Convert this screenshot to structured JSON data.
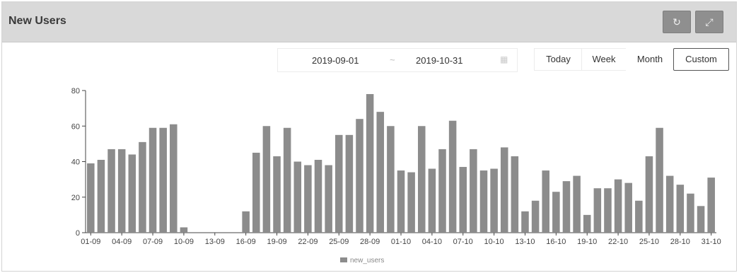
{
  "header": {
    "title": "New Users",
    "refresh_icon": "refresh-icon",
    "expand_icon": "expand-icon"
  },
  "toolbar": {
    "date_from": "2019-09-01",
    "date_separator": "~",
    "date_to": "2019-10-31",
    "calendar_icon": "calendar-icon",
    "today_label": "Today",
    "week_label": "Week",
    "month_label": "Month",
    "custom_label": "Custom",
    "active_range": "Custom"
  },
  "chart_data": {
    "type": "bar",
    "ylim": [
      0,
      80
    ],
    "yticks": [
      0,
      20,
      40,
      60,
      80
    ],
    "xtick_labels": [
      "01-09",
      "04-09",
      "07-09",
      "10-09",
      "13-09",
      "16-09",
      "19-09",
      "22-09",
      "25-09",
      "28-09",
      "01-10",
      "04-10",
      "07-10",
      "10-10",
      "13-10",
      "16-10",
      "19-10",
      "22-10",
      "25-10",
      "28-10",
      "31-10"
    ],
    "categories": [
      "01-09",
      "02-09",
      "03-09",
      "04-09",
      "05-09",
      "06-09",
      "07-09",
      "08-09",
      "09-09",
      "10-09",
      "11-09",
      "12-09",
      "13-09",
      "14-09",
      "15-09",
      "16-09",
      "17-09",
      "18-09",
      "19-09",
      "20-09",
      "21-09",
      "22-09",
      "23-09",
      "24-09",
      "25-09",
      "26-09",
      "27-09",
      "28-09",
      "29-09",
      "30-09",
      "01-10",
      "02-10",
      "03-10",
      "04-10",
      "05-10",
      "06-10",
      "07-10",
      "08-10",
      "09-10",
      "10-10",
      "11-10",
      "12-10",
      "13-10",
      "14-10",
      "15-10",
      "16-10",
      "17-10",
      "18-10",
      "19-10",
      "20-10",
      "21-10",
      "22-10",
      "23-10",
      "24-10",
      "25-10",
      "26-10",
      "27-10",
      "28-10",
      "29-10",
      "30-10",
      "31-10"
    ],
    "series": [
      {
        "name": "new_users",
        "color": "#8c8c8c",
        "values": [
          39,
          41,
          47,
          47,
          44,
          51,
          59,
          59,
          61,
          3,
          0,
          0,
          0,
          0,
          0,
          12,
          45,
          60,
          43,
          59,
          40,
          38,
          41,
          38,
          55,
          55,
          64,
          78,
          68,
          60,
          35,
          34,
          60,
          36,
          47,
          63,
          37,
          47,
          35,
          36,
          48,
          43,
          12,
          18,
          35,
          23,
          29,
          32,
          10,
          25,
          25,
          30,
          28,
          18,
          43,
          59,
          32,
          27,
          22,
          15,
          31
        ]
      }
    ],
    "grid": false,
    "legend_position": "bottom-center"
  }
}
